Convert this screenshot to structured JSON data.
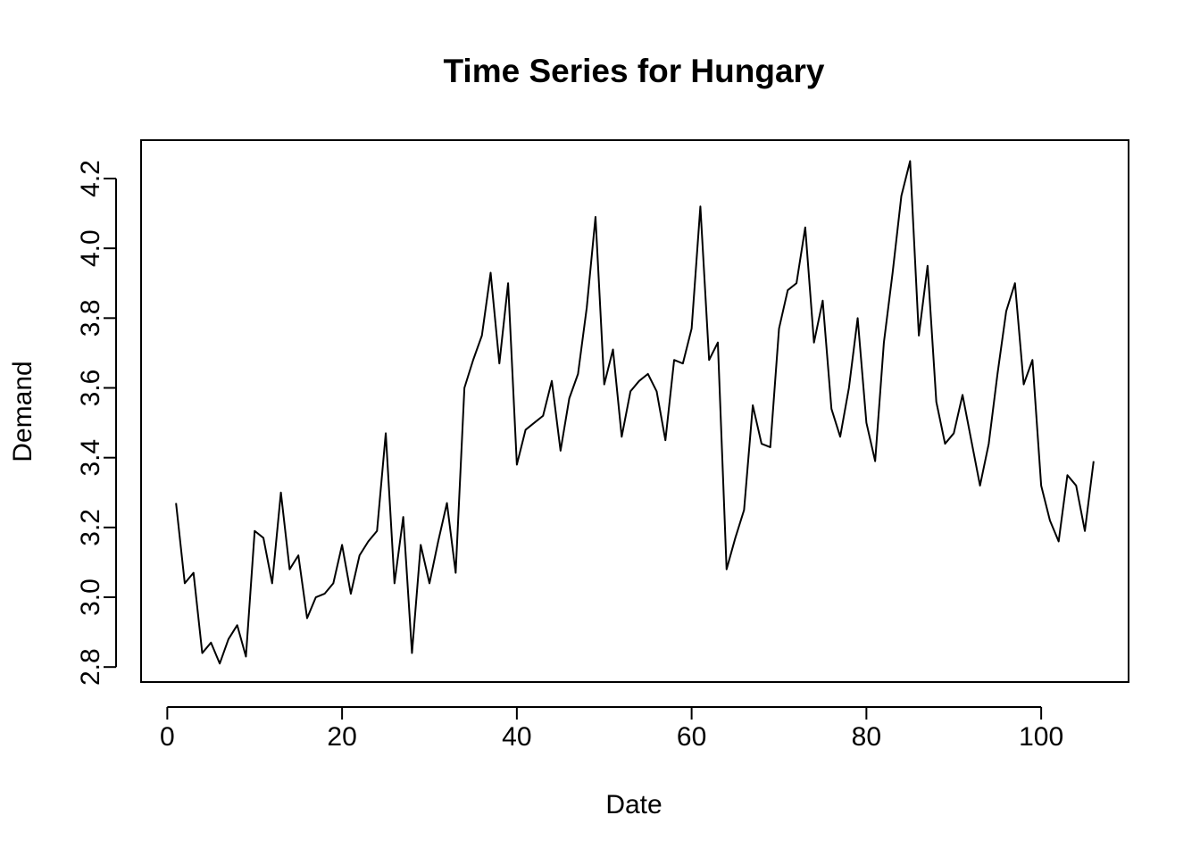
{
  "chart_data": {
    "type": "line",
    "title": "Time Series for Hungary",
    "xlabel": "Date",
    "ylabel": "Demand",
    "xlim": [
      -3,
      110
    ],
    "ylim": [
      2.757,
      4.31
    ],
    "x_ticks": [
      0,
      20,
      40,
      60,
      80,
      100
    ],
    "y_ticks": [
      2.8,
      3.0,
      3.2,
      3.4,
      3.6,
      3.8,
      4.0,
      4.2
    ],
    "x_tick_labels": [
      "0",
      "20",
      "40",
      "60",
      "80",
      "100"
    ],
    "y_tick_labels": [
      "2.8",
      "3.0",
      "3.2",
      "3.4",
      "3.6",
      "3.8",
      "4.0",
      "4.2"
    ],
    "grid": false,
    "line_color": "#000000",
    "series": [
      {
        "x": [
          1,
          2,
          3,
          4,
          5,
          6,
          7,
          8,
          9,
          10,
          11,
          12,
          13,
          14,
          15,
          16,
          17,
          18,
          19,
          20,
          21,
          22,
          23,
          24,
          25,
          26,
          27,
          28,
          29,
          30,
          31,
          32,
          33,
          34,
          35,
          36,
          37,
          38,
          39,
          40,
          41,
          42,
          43,
          44,
          45,
          46,
          47,
          48,
          49,
          50,
          51,
          52,
          53,
          54,
          55,
          56,
          57,
          58,
          59,
          60,
          61,
          62,
          63,
          64,
          65,
          66,
          67,
          68,
          69,
          70,
          71,
          72,
          73,
          74,
          75,
          76,
          77,
          78,
          79,
          80,
          81,
          82,
          83,
          84,
          85,
          86,
          87,
          88,
          89,
          90,
          91,
          92,
          93,
          94,
          95,
          96,
          97,
          98,
          99,
          100,
          101,
          102,
          103,
          104,
          105,
          106
        ],
        "values": [
          3.27,
          3.04,
          3.07,
          2.84,
          2.87,
          2.81,
          2.88,
          2.92,
          2.83,
          3.19,
          3.17,
          3.04,
          3.3,
          3.08,
          3.12,
          2.94,
          3.0,
          3.01,
          3.04,
          3.15,
          3.01,
          3.12,
          3.16,
          3.19,
          3.47,
          3.04,
          3.23,
          2.84,
          3.15,
          3.04,
          3.16,
          3.27,
          3.07,
          3.6,
          3.68,
          3.75,
          3.93,
          3.67,
          3.9,
          3.38,
          3.48,
          3.5,
          3.52,
          3.62,
          3.42,
          3.57,
          3.64,
          3.83,
          4.09,
          3.61,
          3.71,
          3.46,
          3.59,
          3.62,
          3.64,
          3.59,
          3.45,
          3.68,
          3.67,
          3.77,
          4.12,
          3.68,
          3.73,
          3.08,
          3.17,
          3.25,
          3.55,
          3.44,
          3.43,
          3.77,
          3.88,
          3.9,
          4.06,
          3.73,
          3.85,
          3.54,
          3.46,
          3.6,
          3.8,
          3.5,
          3.39,
          3.73,
          3.93,
          4.15,
          4.25,
          3.75,
          3.95,
          3.56,
          3.44,
          3.47,
          3.58,
          3.45,
          3.32,
          3.44,
          3.64,
          3.82,
          3.9,
          3.61,
          3.68,
          3.32,
          3.22,
          3.16,
          3.35,
          3.32,
          3.19,
          3.39
        ]
      }
    ]
  }
}
